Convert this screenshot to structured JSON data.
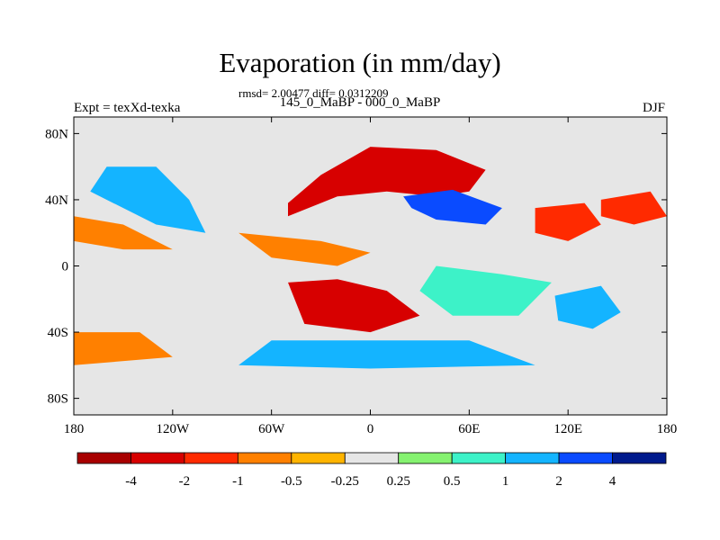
{
  "chart_data": {
    "type": "heatmap",
    "title": "Evaporation (in mm/day)",
    "stats_line": "rmsd= 2.00477 diff= 0.0312209",
    "subtitle": "145_0_MaBP - 000_0_MaBP",
    "left_label": "Expt = texXd-texka",
    "right_label": "DJF",
    "projection": "cylindrical equidistant",
    "x_range": [
      -180,
      180
    ],
    "y_range": [
      -90,
      90
    ],
    "x_ticks": [
      {
        "value": -180,
        "label": "180"
      },
      {
        "value": -120,
        "label": "120W"
      },
      {
        "value": -60,
        "label": "60W"
      },
      {
        "value": 0,
        "label": "0"
      },
      {
        "value": 60,
        "label": "60E"
      },
      {
        "value": 120,
        "label": "120E"
      },
      {
        "value": 180,
        "label": "180"
      }
    ],
    "y_ticks": [
      {
        "value": 80,
        "label": "80N"
      },
      {
        "value": 40,
        "label": "40N"
      },
      {
        "value": 0,
        "label": "0"
      },
      {
        "value": -40,
        "label": "40S"
      },
      {
        "value": -80,
        "label": "80S"
      }
    ],
    "colorbar": {
      "labels": [
        "-4",
        "-2",
        "-1",
        "-0.5",
        "-0.25",
        "0.25",
        "0.5",
        "1",
        "2",
        "4"
      ],
      "colors": [
        "#a80000",
        "#d70000",
        "#ff2a00",
        "#ff8000",
        "#ffb400",
        "#e6e6e6",
        "#85f270",
        "#3df2c8",
        "#14b4ff",
        "#0a4bff",
        "#001a8c"
      ]
    },
    "regions": [
      {
        "name": "eurasia",
        "value": -4,
        "points": [
          [
            -50,
            38
          ],
          [
            -30,
            55
          ],
          [
            0,
            72
          ],
          [
            40,
            70
          ],
          [
            70,
            58
          ],
          [
            60,
            45
          ],
          [
            40,
            42
          ],
          [
            10,
            45
          ],
          [
            -20,
            42
          ],
          [
            -50,
            30
          ]
        ]
      },
      {
        "name": "central-asia-high",
        "value": 3,
        "points": [
          [
            20,
            42
          ],
          [
            50,
            46
          ],
          [
            80,
            35
          ],
          [
            70,
            25
          ],
          [
            40,
            28
          ],
          [
            25,
            35
          ]
        ]
      },
      {
        "name": "south-asia",
        "value": -2,
        "points": [
          [
            100,
            35
          ],
          [
            130,
            38
          ],
          [
            140,
            25
          ],
          [
            120,
            15
          ],
          [
            100,
            20
          ]
        ]
      },
      {
        "name": "south-atlantic",
        "value": -3,
        "points": [
          [
            -50,
            -10
          ],
          [
            -20,
            -8
          ],
          [
            10,
            -15
          ],
          [
            30,
            -30
          ],
          [
            0,
            -40
          ],
          [
            -40,
            -35
          ]
        ]
      },
      {
        "name": "north-america-blue",
        "value": 1.5,
        "points": [
          [
            -160,
            60
          ],
          [
            -130,
            60
          ],
          [
            -110,
            40
          ],
          [
            -100,
            20
          ],
          [
            -130,
            25
          ],
          [
            -170,
            45
          ]
        ]
      },
      {
        "name": "north-pacific-orange",
        "value": -0.7,
        "points": [
          [
            -180,
            30
          ],
          [
            -150,
            25
          ],
          [
            -120,
            10
          ],
          [
            -150,
            10
          ],
          [
            -180,
            15
          ]
        ]
      },
      {
        "name": "south-pacific-orange",
        "value": -0.6,
        "points": [
          [
            -180,
            -40
          ],
          [
            -140,
            -40
          ],
          [
            -120,
            -55
          ],
          [
            -180,
            -60
          ]
        ]
      },
      {
        "name": "southern-ocean-cyan",
        "value": 1.2,
        "points": [
          [
            -60,
            -45
          ],
          [
            0,
            -45
          ],
          [
            60,
            -45
          ],
          [
            100,
            -60
          ],
          [
            0,
            -62
          ],
          [
            -80,
            -60
          ]
        ]
      },
      {
        "name": "australia-blue",
        "value": 1.5,
        "points": [
          [
            112,
            -18
          ],
          [
            140,
            -12
          ],
          [
            152,
            -28
          ],
          [
            135,
            -38
          ],
          [
            114,
            -33
          ]
        ]
      },
      {
        "name": "indian-ocean-teal",
        "value": 0.6,
        "points": [
          [
            40,
            0
          ],
          [
            80,
            -5
          ],
          [
            110,
            -10
          ],
          [
            90,
            -30
          ],
          [
            50,
            -30
          ],
          [
            30,
            -15
          ]
        ]
      },
      {
        "name": "west-pacific-red",
        "value": -1.5,
        "points": [
          [
            140,
            40
          ],
          [
            170,
            45
          ],
          [
            180,
            30
          ],
          [
            160,
            25
          ],
          [
            140,
            30
          ]
        ]
      },
      {
        "name": "tropical-atlantic-orange",
        "value": -0.8,
        "points": [
          [
            -80,
            20
          ],
          [
            -30,
            15
          ],
          [
            0,
            8
          ],
          [
            -20,
            0
          ],
          [
            -60,
            5
          ]
        ]
      }
    ]
  }
}
